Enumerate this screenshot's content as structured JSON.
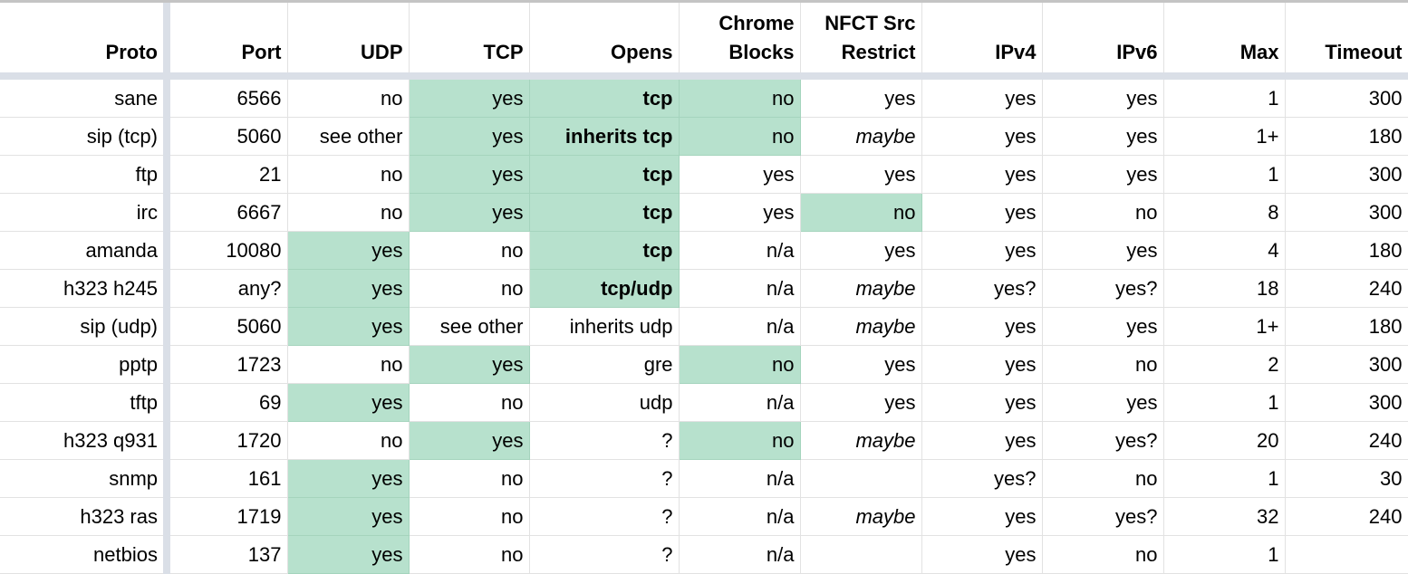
{
  "colors": {
    "highlight": "#b7e1cd",
    "frozen_border": "#dadfe7",
    "grid": "#e2e2e2"
  },
  "columns": [
    "Proto",
    "Port",
    "UDP",
    "TCP",
    "Opens",
    "Chrome Blocks",
    "NFCT Src Restrict",
    "IPv4",
    "IPv6",
    "Max",
    "Timeout"
  ],
  "rows": [
    {
      "cells": [
        "sane",
        "6566",
        "no",
        "yes",
        "tcp",
        "no",
        "yes",
        "yes",
        "yes",
        "1",
        "300"
      ],
      "highlight": [
        3,
        4,
        5
      ],
      "bold": [
        4
      ],
      "italic": []
    },
    {
      "cells": [
        "sip (tcp)",
        "5060",
        "see other",
        "yes",
        "inherits tcp",
        "no",
        "maybe",
        "yes",
        "yes",
        "1+",
        "180"
      ],
      "highlight": [
        3,
        4,
        5
      ],
      "bold": [
        4
      ],
      "italic": [
        6
      ]
    },
    {
      "cells": [
        "ftp",
        "21",
        "no",
        "yes",
        "tcp",
        "yes",
        "yes",
        "yes",
        "yes",
        "1",
        "300"
      ],
      "highlight": [
        3,
        4
      ],
      "bold": [
        4
      ],
      "italic": []
    },
    {
      "cells": [
        "irc",
        "6667",
        "no",
        "yes",
        "tcp",
        "yes",
        "no",
        "yes",
        "no",
        "8",
        "300"
      ],
      "highlight": [
        3,
        4,
        6
      ],
      "bold": [
        4
      ],
      "italic": []
    },
    {
      "cells": [
        "amanda",
        "10080",
        "yes",
        "no",
        "tcp",
        "n/a",
        "yes",
        "yes",
        "yes",
        "4",
        "180"
      ],
      "highlight": [
        2,
        4
      ],
      "bold": [
        4
      ],
      "italic": []
    },
    {
      "cells": [
        "h323 h245",
        "any?",
        "yes",
        "no",
        "tcp/udp",
        "n/a",
        "maybe",
        "yes?",
        "yes?",
        "18",
        "240"
      ],
      "highlight": [
        2,
        4
      ],
      "bold": [
        4
      ],
      "italic": [
        6
      ]
    },
    {
      "cells": [
        "sip (udp)",
        "5060",
        "yes",
        "see other",
        "inherits udp",
        "n/a",
        "maybe",
        "yes",
        "yes",
        "1+",
        "180"
      ],
      "highlight": [
        2
      ],
      "bold": [],
      "italic": [
        6
      ]
    },
    {
      "cells": [
        "pptp",
        "1723",
        "no",
        "yes",
        "gre",
        "no",
        "yes",
        "yes",
        "no",
        "2",
        "300"
      ],
      "highlight": [
        3,
        5
      ],
      "bold": [],
      "italic": []
    },
    {
      "cells": [
        "tftp",
        "69",
        "yes",
        "no",
        "udp",
        "n/a",
        "yes",
        "yes",
        "yes",
        "1",
        "300"
      ],
      "highlight": [
        2
      ],
      "bold": [],
      "italic": []
    },
    {
      "cells": [
        "h323 q931",
        "1720",
        "no",
        "yes",
        "?",
        "no",
        "maybe",
        "yes",
        "yes?",
        "20",
        "240"
      ],
      "highlight": [
        3,
        5
      ],
      "bold": [],
      "italic": [
        6
      ]
    },
    {
      "cells": [
        "snmp",
        "161",
        "yes",
        "no",
        "?",
        "n/a",
        "",
        "yes?",
        "no",
        "1",
        "30"
      ],
      "highlight": [
        2
      ],
      "bold": [],
      "italic": []
    },
    {
      "cells": [
        "h323 ras",
        "1719",
        "yes",
        "no",
        "?",
        "n/a",
        "maybe",
        "yes",
        "yes?",
        "32",
        "240"
      ],
      "highlight": [
        2
      ],
      "bold": [],
      "italic": [
        6
      ]
    },
    {
      "cells": [
        "netbios",
        "137",
        "yes",
        "no",
        "?",
        "n/a",
        "",
        "yes",
        "no",
        "1",
        ""
      ],
      "highlight": [
        2
      ],
      "bold": [],
      "italic": []
    }
  ]
}
